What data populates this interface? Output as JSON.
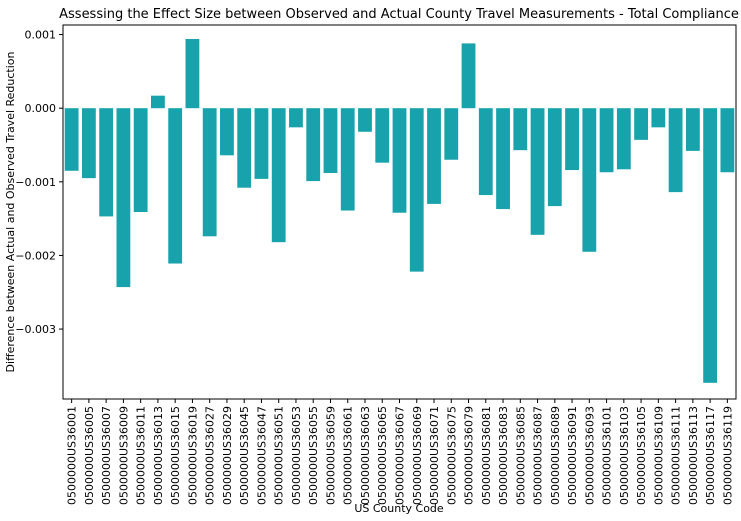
{
  "chart_data": {
    "type": "bar",
    "title": "Assessing the Effect Size between Observed and Actual County Travel Measurements - Total Compliance",
    "xlabel": "US County Code",
    "ylabel": "Difference between Actual and Observed Travel Reduction",
    "ylim": [
      -0.00395,
      0.00113
    ],
    "yticks": [
      0.001,
      0.0,
      -0.001,
      -0.002,
      -0.003
    ],
    "ytick_labels": [
      "0.001",
      "0.000",
      "−0.001",
      "−0.002",
      "−0.003"
    ],
    "bar_color": "#17a2ac",
    "grid": false,
    "categories": [
      "0500000US36001",
      "0500000US36005",
      "0500000US36007",
      "0500000US36009",
      "0500000US36011",
      "0500000US36013",
      "0500000US36015",
      "0500000US36019",
      "0500000US36027",
      "0500000US36029",
      "0500000US36045",
      "0500000US36047",
      "0500000US36051",
      "0500000US36053",
      "0500000US36055",
      "0500000US36059",
      "0500000US36061",
      "0500000US36063",
      "0500000US36065",
      "0500000US36067",
      "0500000US36069",
      "0500000US36071",
      "0500000US36075",
      "0500000US36079",
      "0500000US36081",
      "0500000US36083",
      "0500000US36085",
      "0500000US36087",
      "0500000US36089",
      "0500000US36091",
      "0500000US36093",
      "0500000US36101",
      "0500000US36103",
      "0500000US36105",
      "0500000US36109",
      "0500000US36111",
      "0500000US36113",
      "0500000US36117",
      "0500000US36119"
    ],
    "values": [
      -0.00085,
      -0.00095,
      -0.00147,
      -0.00243,
      -0.00141,
      0.00017,
      -0.00211,
      0.00094,
      -0.00174,
      -0.00064,
      -0.00108,
      -0.00096,
      -0.00182,
      -0.00026,
      -0.00099,
      -0.00088,
      -0.00139,
      -0.00032,
      -0.00074,
      -0.00142,
      -0.00222,
      -0.0013,
      -0.0007,
      0.00088,
      -0.00118,
      -0.00137,
      -0.00057,
      -0.00172,
      -0.00133,
      -0.00084,
      -0.00195,
      -0.00087,
      -0.00083,
      -0.00043,
      -0.00026,
      -0.00114,
      -0.00058,
      -0.00373,
      -0.00087
    ]
  }
}
